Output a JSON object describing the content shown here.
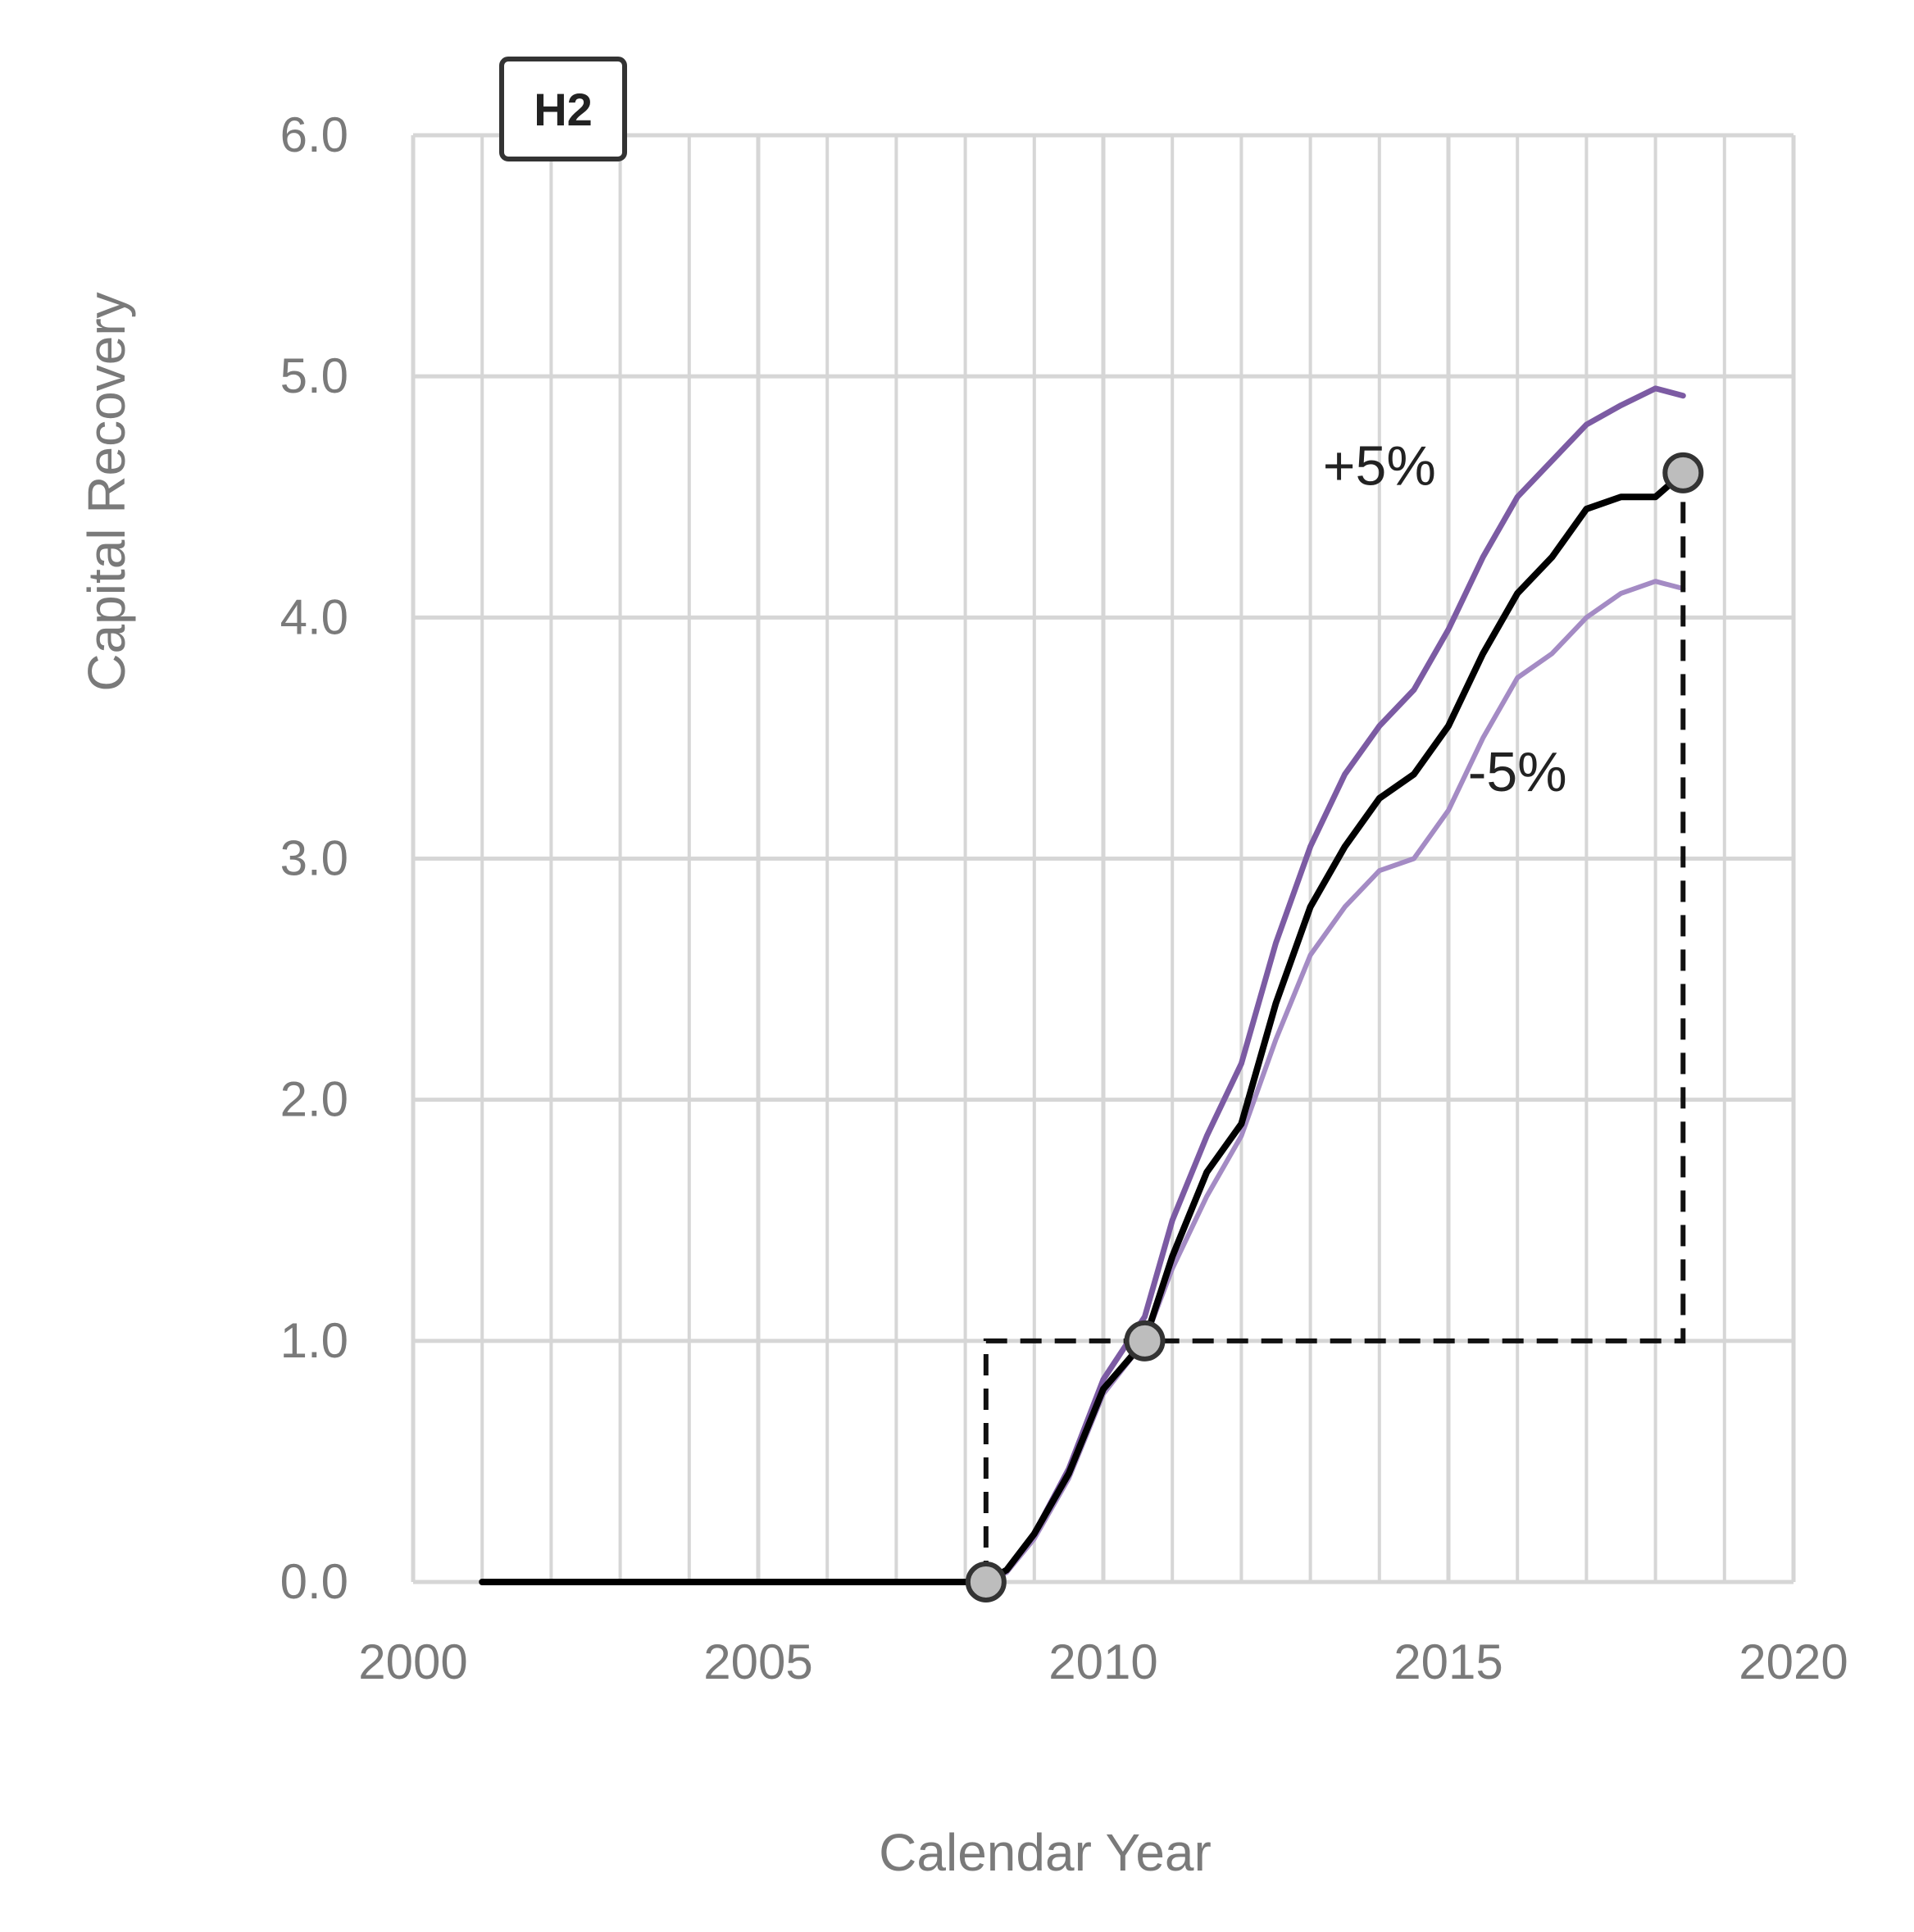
{
  "chart_data": {
    "type": "line",
    "panel_label": "H2",
    "xlabel": "Calendar Year",
    "ylabel": "Capital Recovery",
    "xlim": [
      2000,
      2020
    ],
    "ylim": [
      0,
      6
    ],
    "x_ticks": [
      "2000",
      "2005",
      "2010",
      "2015",
      "2020"
    ],
    "y_ticks": [
      "0.0",
      "1.0",
      "2.0",
      "3.0",
      "4.0",
      "5.0",
      "6.0"
    ],
    "grid": true,
    "series": [
      {
        "name": "",
        "color": "#000000",
        "x": [
          2001.0,
          2008.3,
          2008.6,
          2009.0,
          2009.5,
          2010.0,
          2010.6,
          2011.0,
          2011.5,
          2012.0,
          2012.5,
          2013.0,
          2013.5,
          2014.0,
          2014.5,
          2015.0,
          2015.5,
          2016.0,
          2016.5,
          2017.0,
          2017.5,
          2018.0,
          2018.4
        ],
        "y": [
          0.0,
          0.0,
          0.05,
          0.2,
          0.45,
          0.8,
          1.0,
          1.35,
          1.7,
          1.9,
          2.4,
          2.8,
          3.05,
          3.25,
          3.35,
          3.55,
          3.85,
          4.1,
          4.25,
          4.45,
          4.5,
          4.5,
          4.6
        ]
      },
      {
        "name": "",
        "color": "#7c5ba3",
        "x": [
          2001.0,
          2008.3,
          2008.6,
          2009.0,
          2009.5,
          2010.0,
          2010.6,
          2011.0,
          2011.5,
          2012.0,
          2012.5,
          2013.0,
          2013.5,
          2014.0,
          2014.5,
          2015.0,
          2015.5,
          2016.0,
          2016.5,
          2017.0,
          2017.5,
          2018.0,
          2018.4
        ],
        "y": [
          0.0,
          0.0,
          0.05,
          0.2,
          0.47,
          0.84,
          1.1,
          1.5,
          1.85,
          2.15,
          2.65,
          3.05,
          3.35,
          3.55,
          3.7,
          3.95,
          4.25,
          4.5,
          4.65,
          4.8,
          4.88,
          4.95,
          4.92
        ]
      },
      {
        "name": "",
        "color": "#a48bc4",
        "x": [
          2001.0,
          2008.3,
          2008.6,
          2009.0,
          2009.5,
          2010.0,
          2010.6,
          2011.0,
          2011.5,
          2012.0,
          2012.5,
          2013.0,
          2013.5,
          2014.0,
          2014.5,
          2015.0,
          2015.5,
          2016.0,
          2016.5,
          2017.0,
          2017.5,
          2018.0,
          2018.4
        ],
        "y": [
          0.0,
          0.0,
          0.04,
          0.18,
          0.43,
          0.78,
          1.0,
          1.3,
          1.6,
          1.85,
          2.25,
          2.6,
          2.8,
          2.95,
          3.0,
          3.2,
          3.5,
          3.75,
          3.85,
          4.0,
          4.1,
          4.15,
          4.12
        ]
      }
    ],
    "markers": [
      {
        "x": 2008.3,
        "y": 0.0
      },
      {
        "x": 2010.6,
        "y": 1.0
      },
      {
        "x": 2018.4,
        "y": 4.6
      }
    ],
    "dashed_guide": {
      "x": [
        2008.3,
        2008.3,
        2018.4,
        2018.4
      ],
      "y": [
        0.0,
        1.0,
        1.0,
        4.6
      ]
    },
    "annotations": [
      {
        "text": "+5%",
        "x": 2014.0,
        "y": 4.55
      },
      {
        "text": "-5%",
        "x": 2016.0,
        "y": 3.28
      }
    ],
    "colors": {
      "grid": "#d6d6d6",
      "marker_fill": "#bdbdbd",
      "marker_stroke": "#333333"
    }
  }
}
